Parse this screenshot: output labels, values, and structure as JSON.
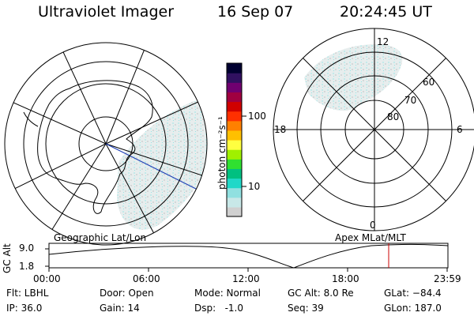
{
  "header": {
    "title": "Ultraviolet Imager",
    "date": "16 Sep 07",
    "time": "20:24:45 UT"
  },
  "colorbar": {
    "unit_label": "photon cm⁻²s⁻¹",
    "ticks": [
      "100",
      "10"
    ],
    "colors": [
      "#d0d0d0",
      "#c8e8e8",
      "#90e0e0",
      "#20d8c8",
      "#00c080",
      "#30e030",
      "#a0f000",
      "#ffff40",
      "#ffc000",
      "#ff8000",
      "#ff3000",
      "#d00000",
      "#a00040",
      "#700070",
      "#301060",
      "#000030"
    ]
  },
  "left_map": {
    "caption": "Geographic Lat/Lon"
  },
  "right_map": {
    "caption": "Apex MLat/MLT",
    "mlt_labels": {
      "top": "12",
      "left": "18",
      "right": "6",
      "bottom": "0"
    },
    "lat_labels": [
      "60",
      "70",
      "80"
    ]
  },
  "altitude_plot": {
    "ylabel": "GC Alt",
    "yticks": [
      "9.0",
      "1.8"
    ],
    "xticks": [
      "00:00",
      "06:00",
      "12:00",
      "18:00",
      "23:59"
    ]
  },
  "info": {
    "filter": "Flt: LBHL",
    "ip": "IP: 36.0",
    "door": "Door: Open",
    "gain": "Gain: 14",
    "mode": "Mode: Normal",
    "dsp": "Dsp:   -1.0",
    "gc_alt": "GC Alt: 8.0 Re",
    "seq": "Seq: 39",
    "glat": "GLat: −84.4",
    "glon": "GLon: 187.0"
  }
}
